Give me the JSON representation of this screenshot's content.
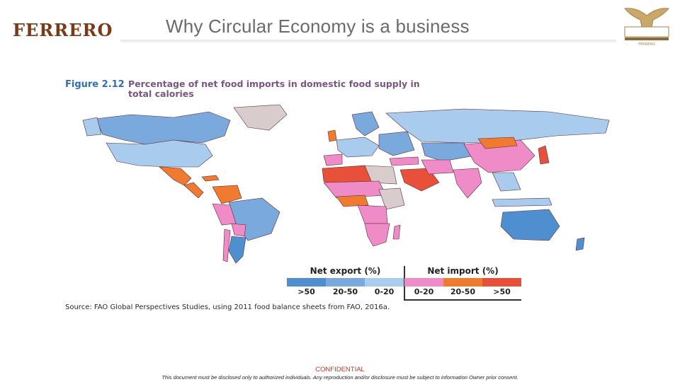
{
  "header": {
    "brand_logo": "FERRERO",
    "title": "Why Circular Economy is a business",
    "emblem_text": "FERRERO"
  },
  "figure": {
    "label": "Figure 2.12",
    "caption": "Percentage of net food imports in domestic food supply in total calories"
  },
  "legend": {
    "export_heading": "Net export (%)",
    "import_heading": "Net import (%)",
    "bins": [
      {
        "label": ">50",
        "color": "#4f8fcf"
      },
      {
        "label": "20-50",
        "color": "#7aa9dd"
      },
      {
        "label": "0-20",
        "color": "#a8cbee"
      },
      {
        "label": "0-20",
        "color": "#ef8cc8"
      },
      {
        "label": "20-50",
        "color": "#f07a30"
      },
      {
        "label": ">50",
        "color": "#e8503a"
      }
    ],
    "no_data_color": "#d8cccc"
  },
  "source": "Source: FAO Global Perspectives Studies, using 2011 food balance sheets from FAO, 2016a.",
  "footer": {
    "confidential": "CONFIDENTIAL",
    "disclaimer": "This document must be disclosed only to authorized individuals. Any reproduction and/or disclosure must be subject to information Owner prior consent."
  }
}
